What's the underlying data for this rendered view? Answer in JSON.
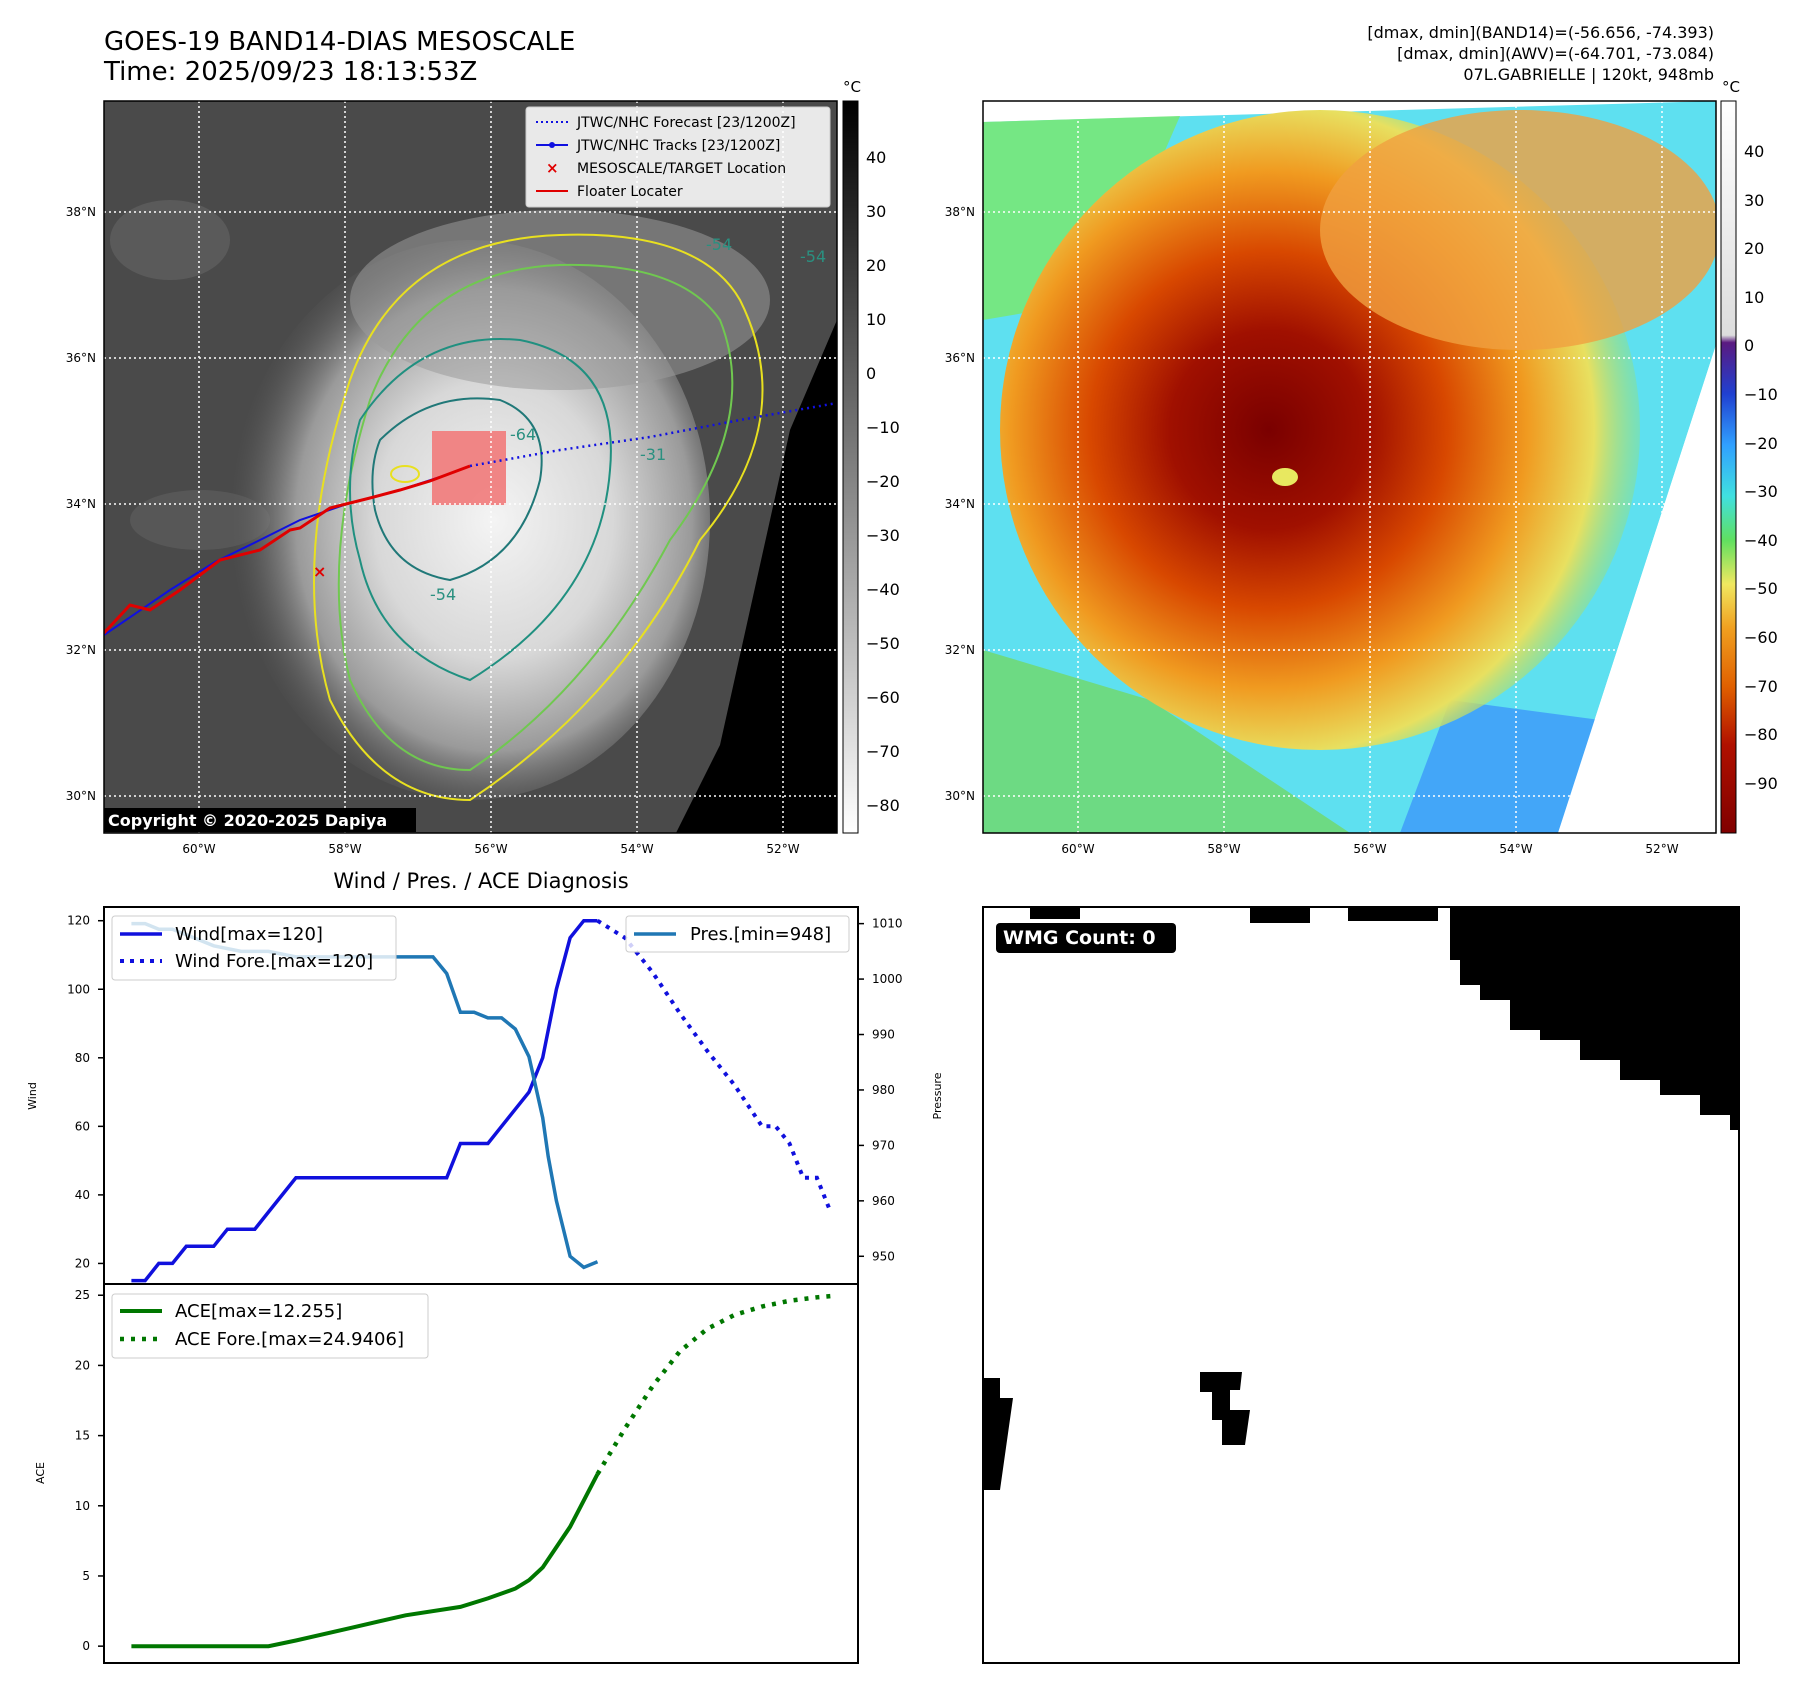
{
  "header": {
    "title_line1": "GOES-19 BAND14-DIAS MESOSCALE",
    "title_line2": "Time: 2025/09/23 18:13:53Z",
    "info_line1": "[dmax, dmin](BAND14)=(-56.656, -74.393)",
    "info_line2": "[dmax, dmin](AWV)=(-64.701, -73.084)",
    "info_line3": "07L.GABRIELLE | 120kt, 948mb"
  },
  "ir_panel": {
    "copyright": "Copyright © 2020-2025 Dapiya",
    "lat_labels": [
      "38°N",
      "36°N",
      "34°N",
      "32°N",
      "30°N"
    ],
    "lon_labels": [
      "60°W",
      "58°W",
      "56°W",
      "54°W",
      "52°W"
    ],
    "contour_labels": [
      "-54",
      "-54",
      "-64",
      "-54",
      "-31"
    ],
    "legend": [
      {
        "label": "JTWC/NHC Forecast [23/1200Z]",
        "color": "#1010e0",
        "style": "dotted"
      },
      {
        "label": "JTWC/NHC Tracks [23/1200Z]",
        "color": "#1010e0",
        "style": "line-dot"
      },
      {
        "label": "MESOSCALE/TARGET Location",
        "color": "#e00000",
        "style": "x"
      },
      {
        "label": "Floater Locater",
        "color": "#e00000",
        "style": "line"
      }
    ],
    "colorbar": {
      "unit": "°C",
      "ticks": [
        "40",
        "30",
        "20",
        "10",
        "0",
        "−10",
        "−20",
        "−30",
        "−40",
        "−50",
        "−60",
        "−70",
        "−80"
      ]
    }
  },
  "awv_panel": {
    "lat_labels": [
      "38°N",
      "36°N",
      "34°N",
      "32°N",
      "30°N"
    ],
    "lon_labels": [
      "60°W",
      "58°W",
      "56°W",
      "54°W",
      "52°W"
    ],
    "colorbar": {
      "unit": "°C",
      "ticks": [
        "40",
        "30",
        "20",
        "10",
        "0",
        "−10",
        "−20",
        "−30",
        "−40",
        "−50",
        "−60",
        "−70",
        "−80",
        "−90"
      ]
    }
  },
  "wmg_panel": {
    "label": "WMG Count: 0"
  },
  "colors": {
    "wind": "#1010dd",
    "pressure": "#1f77b4",
    "ace": "#007700",
    "track": "#e00000"
  },
  "chart_data": [
    {
      "type": "line",
      "title": "Wind / Pres. / ACE Diagnosis",
      "ylabel": "Wind",
      "y2label": "Pressure",
      "ylim": [
        14,
        124
      ],
      "y2lim": [
        945,
        1013
      ],
      "yticks": [
        20,
        40,
        60,
        80,
        100,
        120
      ],
      "y2ticks": [
        950,
        960,
        970,
        980,
        990,
        1000,
        1010
      ],
      "xlim": [
        -1,
        26.5
      ],
      "series": [
        {
          "name": "Wind[max=120]",
          "style": "solid",
          "axis": "left",
          "x": [
            0,
            0.5,
            1,
            1.5,
            2,
            2.5,
            3,
            3.5,
            4,
            4.5,
            5,
            5.5,
            6,
            6.5,
            7,
            7.5,
            8,
            8.5,
            9,
            9.5,
            10,
            10.5,
            11,
            11.5,
            12,
            12.5,
            13,
            13.5,
            14,
            14.5,
            15,
            15.5,
            16,
            16.5,
            17
          ],
          "values": [
            15,
            15,
            20,
            20,
            25,
            25,
            25,
            30,
            30,
            30,
            35,
            40,
            45,
            45,
            45,
            45,
            45,
            45,
            45,
            45,
            45,
            45,
            45,
            45,
            55,
            55,
            55,
            60,
            65,
            70,
            80,
            100,
            115,
            120,
            120
          ]
        },
        {
          "name": "Wind Fore.[max=120]",
          "style": "dotted",
          "axis": "left",
          "x": [
            17,
            18,
            19,
            20,
            21,
            22,
            23,
            23.5,
            24,
            24.5,
            25,
            25.5
          ],
          "values": [
            120,
            115,
            105,
            93,
            82,
            72,
            60,
            60,
            55,
            45,
            45,
            35
          ]
        },
        {
          "name": "Pres.[min=948]",
          "style": "solid",
          "axis": "right",
          "x": [
            0,
            0.5,
            1,
            1.5,
            2,
            2.5,
            3,
            4,
            5,
            6,
            7,
            8,
            9,
            10,
            11,
            11.5,
            12,
            12.5,
            13,
            13.5,
            14,
            14.5,
            15,
            15.2,
            15.5,
            16,
            16.5,
            17
          ],
          "values": [
            1010,
            1010,
            1009,
            1009,
            1008,
            1007,
            1006,
            1005,
            1005,
            1004,
            1004,
            1004,
            1004,
            1004,
            1004,
            1001,
            994,
            994,
            993,
            993,
            991,
            986,
            975,
            968,
            960,
            950,
            948,
            949
          ]
        }
      ]
    },
    {
      "type": "line",
      "ylabel": "ACE",
      "ylim": [
        -1.2,
        25.8
      ],
      "yticks": [
        0,
        5,
        10,
        15,
        20,
        25
      ],
      "xlim": [
        -1,
        26.5
      ],
      "series": [
        {
          "name": "ACE[max=12.255]",
          "style": "solid",
          "x": [
            0,
            2,
            4,
            5,
            6,
            8,
            10,
            12,
            13,
            14,
            14.5,
            15,
            16,
            17
          ],
          "values": [
            0,
            0,
            0,
            0,
            0.4,
            1.3,
            2.2,
            2.8,
            3.4,
            4.1,
            4.7,
            5.6,
            8.5,
            12.255
          ]
        },
        {
          "name": "ACE Fore.[max=24.9406]",
          "style": "dotted",
          "x": [
            17,
            18,
            19,
            20,
            21,
            22,
            23,
            24,
            25,
            25.5
          ],
          "values": [
            12.255,
            15.5,
            18.5,
            21.0,
            22.6,
            23.6,
            24.2,
            24.6,
            24.85,
            24.94
          ]
        }
      ]
    }
  ]
}
